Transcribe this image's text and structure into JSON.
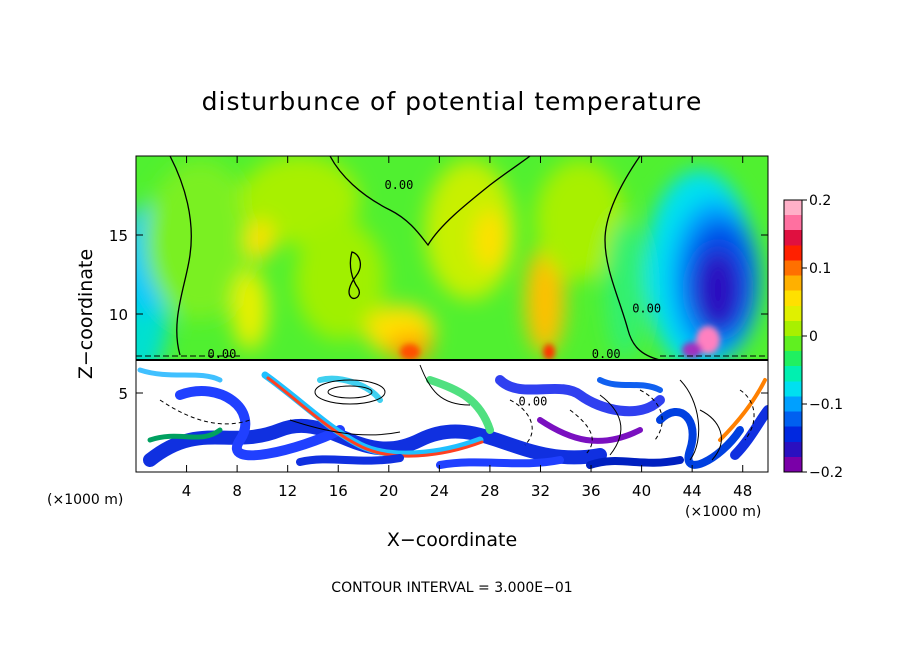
{
  "chart_data": {
    "type": "heatmap",
    "title": "disturbunce of potential temperature",
    "xlabel": "X−coordinate",
    "ylabel": "Z−coordinate",
    "x_unit_left": "(×1000 m)",
    "x_unit_right": "(×1000 m)",
    "footer": "CONTOUR INTERVAL = 3.000E−01",
    "xlim": [
      0,
      50
    ],
    "ylim": [
      0,
      20
    ],
    "x_ticks": [
      4,
      8,
      12,
      16,
      20,
      24,
      28,
      32,
      36,
      40,
      44,
      48
    ],
    "x_tick_labels": [
      "4",
      "8",
      "12",
      "16",
      "20",
      "24",
      "28",
      "32",
      "36",
      "40",
      "44",
      "48"
    ],
    "y_ticks": [
      5,
      10,
      15
    ],
    "y_tick_labels": [
      "5",
      "10",
      "15"
    ],
    "colorbar": {
      "range": [
        -0.2,
        0.2
      ],
      "ticks": [
        0.2,
        0.1,
        0,
        -0.1,
        -0.2
      ],
      "tick_labels": [
        "0.2",
        "0.1",
        "0",
        "−0.1",
        "−0.2"
      ],
      "colors": [
        "#7a00a8",
        "#2a10c0",
        "#0028e0",
        "#0060f0",
        "#00a0ff",
        "#00e0f0",
        "#00f0b0",
        "#20f060",
        "#60f020",
        "#a8f000",
        "#e0f000",
        "#ffe000",
        "#ffb000",
        "#ff7000",
        "#ff2000",
        "#e01040",
        "#ff70a0",
        "#ffb0c8"
      ]
    },
    "contour_labels": [
      {
        "text": "0.00",
        "x": 20.8,
        "y": 17.9
      },
      {
        "text": "0.00",
        "x": 6.8,
        "y": 7.2
      },
      {
        "text": "0.00",
        "x": 31.4,
        "y": 4.2
      },
      {
        "text": "0.00",
        "x": 40.4,
        "y": 10.1
      },
      {
        "text": "0.00",
        "x": 37.2,
        "y": 7.2
      }
    ]
  }
}
